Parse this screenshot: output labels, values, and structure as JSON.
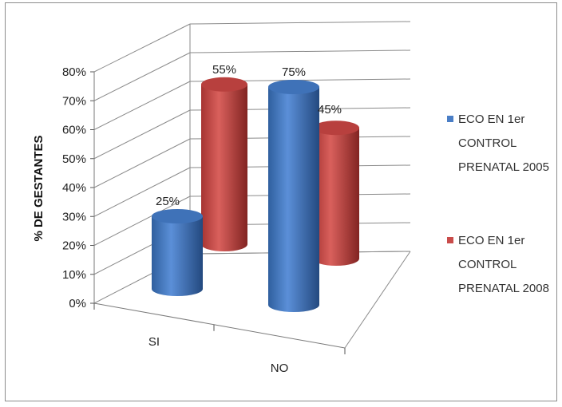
{
  "chart_data": {
    "type": "bar",
    "subtype": "3d-cylinder-clustered",
    "categories": [
      "SI",
      "NO"
    ],
    "series": [
      {
        "name": "ECO EN 1er CONTROL PRENATAL 2005",
        "values": [
          25,
          75
        ],
        "labels": [
          "25%",
          "75%"
        ],
        "color": "#4a7ec6"
      },
      {
        "name": "ECO EN 1er CONTROL PRENATAL 2008",
        "values": [
          55,
          45
        ],
        "labels": [
          "55%",
          "45%"
        ],
        "color": "#c94c4a"
      }
    ],
    "ylabel": "% DE GESTANTES",
    "ylim": [
      0,
      80
    ],
    "yticks": [
      "0%",
      "10%",
      "20%",
      "30%",
      "40%",
      "50%",
      "60%",
      "70%",
      "80%"
    ],
    "grid": true,
    "legend_position": "right",
    "legend": {
      "items": [
        {
          "lines": [
            "ECO EN 1er",
            "CONTROL",
            "PRENATAL 2005"
          ],
          "color": "#4a7ec6"
        },
        {
          "lines": [
            "ECO EN 1er",
            "CONTROL",
            "PRENATAL 2008"
          ],
          "color": "#c94c4a"
        }
      ]
    }
  }
}
